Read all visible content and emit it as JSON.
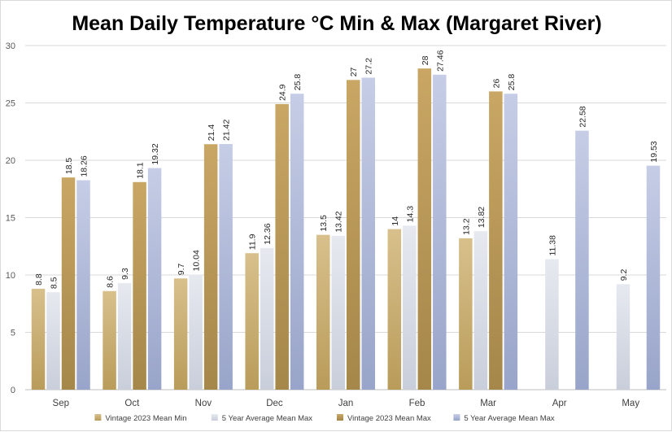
{
  "chart_data": {
    "type": "bar",
    "title": "Mean Daily Temperature °C Min & Max (Margaret River)",
    "xlabel": "",
    "ylabel": "",
    "ylim": [
      0,
      30
    ],
    "yticks": [
      0,
      5,
      10,
      15,
      20,
      25,
      30
    ],
    "grid": true,
    "legend_position": "bottom",
    "categories": [
      "Sep",
      "Oct",
      "Nov",
      "Dec",
      "Jan",
      "Feb",
      "Mar",
      "Apr",
      "May"
    ],
    "series": [
      {
        "name": "Vintage 2023 Mean Min",
        "color_top": "#d8c08c",
        "color_bottom": "#b99c5a",
        "values": [
          8.8,
          8.6,
          9.7,
          11.9,
          13.5,
          14,
          13.2,
          null,
          null
        ],
        "labels": [
          "8.8",
          "8.6",
          "9.7",
          "11.9",
          "13.5",
          "14",
          "13.2",
          "",
          ""
        ]
      },
      {
        "name": "5 Year Average Mean Max",
        "color_top": "#e6e9ef",
        "color_bottom": "#c9cedb",
        "values": [
          8.5,
          9.3,
          10.04,
          12.36,
          13.42,
          14.3,
          13.82,
          11.38,
          9.2
        ],
        "labels": [
          "8.5",
          "9.3",
          "10.04",
          "12.36",
          "13.42",
          "14.3",
          "13.82",
          "11.38",
          "9.2"
        ]
      },
      {
        "name": "Vintage 2023 Mean Max",
        "color_top": "#c9a664",
        "color_bottom": "#a5874a",
        "values": [
          18.5,
          18.1,
          21.4,
          24.9,
          27,
          28,
          26,
          null,
          null
        ],
        "labels": [
          "18.5",
          "18.1",
          "21.4",
          "24.9",
          "27",
          "28",
          "26",
          "",
          ""
        ]
      },
      {
        "name": "5 Year Average Mean Max",
        "color_top": "#c6cde6",
        "color_bottom": "#98a4c9",
        "values": [
          18.26,
          19.32,
          21.42,
          25.8,
          27.2,
          27.46,
          25.8,
          22.58,
          19.53
        ],
        "labels": [
          "18.26",
          "19.32",
          "21.42",
          "25.8",
          "27.2",
          "27.46",
          "25.8",
          "22.58",
          "19.53"
        ]
      }
    ]
  }
}
